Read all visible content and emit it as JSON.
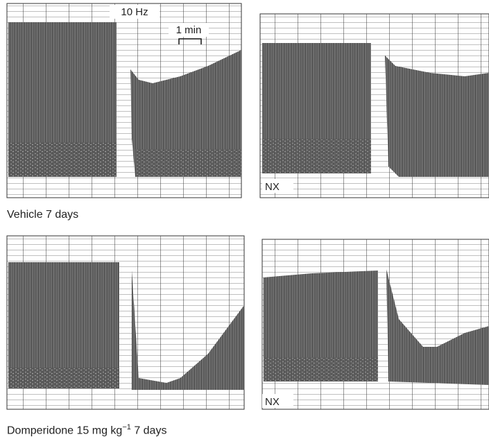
{
  "scale_labels": {
    "frequency": "10 Hz",
    "time": "1 min"
  },
  "markers": [
    "NX",
    "NX"
  ],
  "captions": {
    "top": "Vehicle 7 days",
    "bottom": {
      "text": "Domperidone 15 mg kg",
      "superscript": "−1",
      "suffix": "7 days"
    }
  }
}
